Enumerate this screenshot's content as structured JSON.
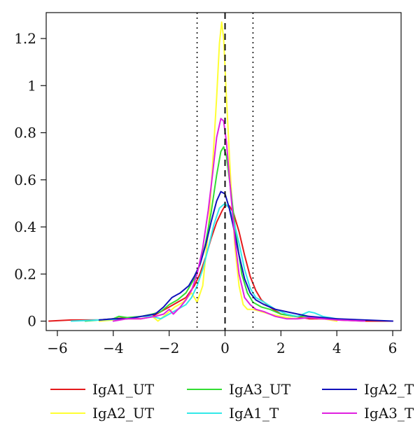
{
  "chart_data": {
    "type": "line",
    "title": "",
    "xlabel": "",
    "ylabel": "",
    "xlim": [
      -6.4,
      6.3
    ],
    "ylim": [
      -0.04,
      1.31
    ],
    "xticks": [
      -6,
      -4,
      -2,
      0,
      2,
      4,
      6
    ],
    "xtick_labels": [
      "−6",
      "−4",
      "−2",
      "0",
      "2",
      "4",
      "6"
    ],
    "yticks": [
      0,
      0.2,
      0.4,
      0.6,
      0.8,
      1,
      1.2
    ],
    "ytick_labels": [
      "0",
      "0.2",
      "0.4",
      "0.6",
      "0.8",
      "1",
      "1.2"
    ],
    "grid": false,
    "legend_position": "bottom",
    "reference_lines": [
      {
        "x": -1,
        "style": "dotted"
      },
      {
        "x": 0,
        "style": "dashed"
      },
      {
        "x": 1,
        "style": "dotted"
      }
    ],
    "series": [
      {
        "name": "IgA1_UT",
        "color": "#e41a1c",
        "points": [
          [
            -6.3,
            0.0
          ],
          [
            -5.5,
            0.005
          ],
          [
            -4.5,
            0.005
          ],
          [
            -4.0,
            0.01
          ],
          [
            -3.5,
            0.015
          ],
          [
            -3.0,
            0.01
          ],
          [
            -2.6,
            0.02
          ],
          [
            -2.3,
            0.04
          ],
          [
            -2.0,
            0.06
          ],
          [
            -1.7,
            0.08
          ],
          [
            -1.4,
            0.1
          ],
          [
            -1.1,
            0.15
          ],
          [
            -0.9,
            0.2
          ],
          [
            -0.7,
            0.27
          ],
          [
            -0.5,
            0.35
          ],
          [
            -0.3,
            0.42
          ],
          [
            -0.1,
            0.47
          ],
          [
            0.0,
            0.49
          ],
          [
            0.15,
            0.49
          ],
          [
            0.3,
            0.46
          ],
          [
            0.5,
            0.38
          ],
          [
            0.7,
            0.28
          ],
          [
            0.9,
            0.19
          ],
          [
            1.1,
            0.13
          ],
          [
            1.3,
            0.09
          ],
          [
            1.6,
            0.06
          ],
          [
            2.0,
            0.03
          ],
          [
            2.5,
            0.02
          ],
          [
            3.0,
            0.01
          ],
          [
            3.5,
            0.01
          ],
          [
            4.0,
            0.005
          ],
          [
            5.0,
            0.0
          ],
          [
            6.0,
            0.0
          ]
        ]
      },
      {
        "name": "IgA2_UT",
        "color": "#ffff33",
        "points": [
          [
            -4.5,
            0.0
          ],
          [
            -3.5,
            0.01
          ],
          [
            -3.0,
            0.01
          ],
          [
            -2.6,
            0.02
          ],
          [
            -2.4,
            0.0
          ],
          [
            -2.1,
            0.03
          ],
          [
            -1.8,
            0.06
          ],
          [
            -1.5,
            0.08
          ],
          [
            -1.2,
            0.12
          ],
          [
            -1.0,
            0.08
          ],
          [
            -0.8,
            0.15
          ],
          [
            -0.6,
            0.38
          ],
          [
            -0.45,
            0.65
          ],
          [
            -0.3,
            0.95
          ],
          [
            -0.2,
            1.18
          ],
          [
            -0.12,
            1.27
          ],
          [
            -0.05,
            1.2
          ],
          [
            0.05,
            0.95
          ],
          [
            0.2,
            0.6
          ],
          [
            0.35,
            0.32
          ],
          [
            0.5,
            0.15
          ],
          [
            0.65,
            0.07
          ],
          [
            0.8,
            0.05
          ],
          [
            1.0,
            0.05
          ],
          [
            1.3,
            0.04
          ],
          [
            1.6,
            0.03
          ],
          [
            2.0,
            0.02
          ],
          [
            2.5,
            0.01
          ],
          [
            3.0,
            0.015
          ],
          [
            3.5,
            0.01
          ],
          [
            4.0,
            0.0
          ]
        ]
      },
      {
        "name": "IgA3_UT",
        "color": "#33dd33",
        "points": [
          [
            -5.0,
            0.0
          ],
          [
            -4.0,
            0.01
          ],
          [
            -3.8,
            0.02
          ],
          [
            -3.5,
            0.015
          ],
          [
            -3.0,
            0.02
          ],
          [
            -2.6,
            0.03
          ],
          [
            -2.3,
            0.04
          ],
          [
            -2.0,
            0.07
          ],
          [
            -1.7,
            0.09
          ],
          [
            -1.4,
            0.12
          ],
          [
            -1.1,
            0.18
          ],
          [
            -0.9,
            0.24
          ],
          [
            -0.7,
            0.33
          ],
          [
            -0.5,
            0.46
          ],
          [
            -0.3,
            0.62
          ],
          [
            -0.15,
            0.72
          ],
          [
            -0.05,
            0.74
          ],
          [
            0.05,
            0.7
          ],
          [
            0.2,
            0.56
          ],
          [
            0.4,
            0.36
          ],
          [
            0.6,
            0.2
          ],
          [
            0.8,
            0.12
          ],
          [
            1.0,
            0.08
          ],
          [
            1.3,
            0.06
          ],
          [
            1.6,
            0.05
          ],
          [
            2.0,
            0.03
          ],
          [
            2.5,
            0.02
          ],
          [
            3.0,
            0.02
          ],
          [
            3.5,
            0.01
          ],
          [
            4.0,
            0.01
          ],
          [
            5.0,
            0.0
          ]
        ]
      },
      {
        "name": "IgA1_T",
        "color": "#33e8e8",
        "points": [
          [
            -5.5,
            0.0
          ],
          [
            -4.5,
            0.005
          ],
          [
            -3.5,
            0.01
          ],
          [
            -3.0,
            0.02
          ],
          [
            -2.6,
            0.02
          ],
          [
            -2.3,
            0.01
          ],
          [
            -2.0,
            0.03
          ],
          [
            -1.7,
            0.05
          ],
          [
            -1.4,
            0.07
          ],
          [
            -1.2,
            0.1
          ],
          [
            -1.0,
            0.15
          ],
          [
            -0.8,
            0.22
          ],
          [
            -0.6,
            0.31
          ],
          [
            -0.4,
            0.41
          ],
          [
            -0.2,
            0.48
          ],
          [
            0.0,
            0.5
          ],
          [
            0.15,
            0.48
          ],
          [
            0.3,
            0.43
          ],
          [
            0.5,
            0.33
          ],
          [
            0.7,
            0.22
          ],
          [
            0.9,
            0.14
          ],
          [
            1.1,
            0.1
          ],
          [
            1.4,
            0.08
          ],
          [
            1.8,
            0.05
          ],
          [
            2.2,
            0.03
          ],
          [
            2.6,
            0.02
          ],
          [
            3.0,
            0.04
          ],
          [
            3.2,
            0.035
          ],
          [
            3.5,
            0.02
          ],
          [
            4.0,
            0.01
          ],
          [
            4.5,
            0.005
          ],
          [
            5.0,
            0.0
          ]
        ]
      },
      {
        "name": "IgA2_T",
        "color": "#1111bb",
        "points": [
          [
            -4.5,
            0.005
          ],
          [
            -4.0,
            0.01
          ],
          [
            -3.5,
            0.01
          ],
          [
            -3.0,
            0.02
          ],
          [
            -2.5,
            0.03
          ],
          [
            -2.2,
            0.06
          ],
          [
            -1.9,
            0.1
          ],
          [
            -1.6,
            0.12
          ],
          [
            -1.3,
            0.15
          ],
          [
            -1.1,
            0.19
          ],
          [
            -0.9,
            0.24
          ],
          [
            -0.7,
            0.32
          ],
          [
            -0.5,
            0.42
          ],
          [
            -0.3,
            0.51
          ],
          [
            -0.15,
            0.55
          ],
          [
            0.0,
            0.54
          ],
          [
            0.15,
            0.48
          ],
          [
            0.3,
            0.4
          ],
          [
            0.5,
            0.28
          ],
          [
            0.7,
            0.18
          ],
          [
            0.9,
            0.12
          ],
          [
            1.1,
            0.09
          ],
          [
            1.4,
            0.07
          ],
          [
            1.8,
            0.05
          ],
          [
            2.2,
            0.04
          ],
          [
            2.6,
            0.03
          ],
          [
            3.0,
            0.02
          ],
          [
            3.5,
            0.015
          ],
          [
            4.0,
            0.01
          ],
          [
            5.0,
            0.005
          ],
          [
            6.0,
            0.0
          ]
        ]
      },
      {
        "name": "IgA3_T",
        "color": "#e020e0",
        "points": [
          [
            -4.0,
            0.0
          ],
          [
            -3.5,
            0.01
          ],
          [
            -3.0,
            0.01
          ],
          [
            -2.5,
            0.02
          ],
          [
            -2.2,
            0.03
          ],
          [
            -2.0,
            0.05
          ],
          [
            -1.85,
            0.03
          ],
          [
            -1.6,
            0.06
          ],
          [
            -1.4,
            0.09
          ],
          [
            -1.2,
            0.13
          ],
          [
            -1.0,
            0.2
          ],
          [
            -0.8,
            0.31
          ],
          [
            -0.6,
            0.47
          ],
          [
            -0.45,
            0.62
          ],
          [
            -0.3,
            0.78
          ],
          [
            -0.15,
            0.86
          ],
          [
            -0.05,
            0.85
          ],
          [
            0.05,
            0.76
          ],
          [
            0.2,
            0.55
          ],
          [
            0.35,
            0.35
          ],
          [
            0.5,
            0.2
          ],
          [
            0.7,
            0.1
          ],
          [
            0.9,
            0.07
          ],
          [
            1.1,
            0.05
          ],
          [
            1.4,
            0.04
          ],
          [
            1.8,
            0.02
          ],
          [
            2.2,
            0.01
          ],
          [
            2.6,
            0.01
          ],
          [
            3.0,
            0.015
          ],
          [
            3.5,
            0.01
          ],
          [
            4.0,
            0.005
          ],
          [
            5.0,
            0.0
          ]
        ]
      }
    ],
    "legend": {
      "columns": [
        [
          "IgA1_UT",
          "IgA2_UT"
        ],
        [
          "IgA3_UT",
          "IgA1_T"
        ],
        [
          "IgA2_T",
          "IgA3_T"
        ]
      ]
    }
  }
}
